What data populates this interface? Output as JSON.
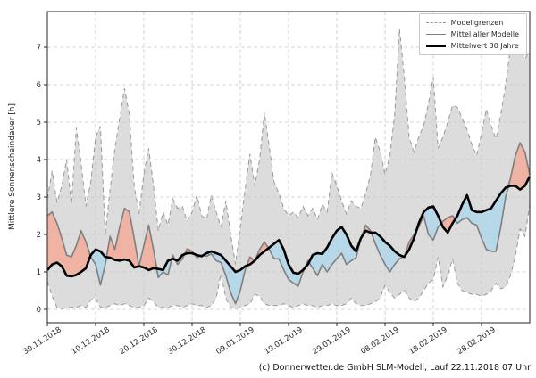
{
  "figure": {
    "y_axis_label": "Mittlere Sonnenscheindauer [h]",
    "footer": "(c) Donnerwetter.de GmbH SLM-Modell, Lauf 22.11.2018 07 Uhr",
    "legend": {
      "model_bounds": "Modellgrenzen",
      "model_mean": "Mittel aller Modelle",
      "climate_mean": "Mittelwert 30 Jahre"
    }
  },
  "chart_data": {
    "type": "line",
    "title": "",
    "xlabel": "",
    "ylabel": "Mittlere Sonnenscheindauer [h]",
    "ylim": [
      0,
      7
    ],
    "grid": true,
    "legend_position": "upper right",
    "x_start": "30.11.2018",
    "x_step": "1 Tag",
    "x_tick_days": [
      0,
      10,
      20,
      30,
      40,
      50,
      60,
      70,
      80,
      90
    ],
    "x_tick_labels": [
      "30.11.2018",
      "10.12.2018",
      "20.12.2018",
      "30.12.2018",
      "09.01.2019",
      "19.01.2019",
      "29.01.2019",
      "08.02.2019",
      "18.02.2019",
      "28.02.2019"
    ],
    "y_ticks": [
      0,
      1,
      2,
      3,
      4,
      5,
      6,
      7
    ],
    "colors": {
      "band": "#dcdcdc",
      "bound_line": "#999999",
      "model_mean": "#7f7f7f",
      "climate_mean": "#000000",
      "above_climate": "#f0b2a2",
      "below_climate": "#b7d8e9",
      "grid": "#c8c8c8",
      "axis": "#262626"
    },
    "series": [
      {
        "name": "Modellgrenzen (obere Grenze)",
        "role": "band_upper",
        "style": "dashed",
        "values": [
          2.95,
          3.7,
          2.85,
          3.3,
          4.0,
          2.8,
          4.85,
          3.9,
          2.75,
          3.4,
          4.6,
          4.89,
          2.0,
          3.2,
          4.3,
          5.1,
          5.9,
          5.2,
          3.3,
          2.55,
          3.6,
          4.3,
          3.3,
          2.1,
          2.6,
          2.25,
          2.95,
          2.7,
          2.75,
          2.35,
          2.6,
          3.05,
          2.5,
          2.4,
          3.05,
          2.6,
          2.2,
          2.9,
          2.0,
          1.2,
          2.2,
          3.2,
          4.15,
          3.3,
          4.0,
          5.25,
          4.35,
          3.4,
          3.1,
          2.7,
          2.5,
          2.6,
          2.45,
          2.75,
          2.5,
          2.7,
          2.4,
          2.8,
          2.6,
          3.65,
          3.3,
          2.9,
          2.55,
          2.9,
          2.75,
          2.7,
          3.1,
          3.6,
          4.6,
          4.2,
          3.6,
          4.1,
          5.2,
          7.5,
          6.2,
          4.6,
          4.2,
          4.6,
          4.9,
          5.5,
          6.2,
          4.3,
          4.6,
          5.0,
          5.45,
          5.4,
          5.1,
          4.8,
          4.4,
          4.1,
          4.7,
          5.35,
          4.9,
          4.55,
          5.2,
          6.0,
          7.0,
          7.0,
          6.95,
          6.7,
          6.9
        ]
      },
      {
        "name": "Modellgrenzen (untere Grenze)",
        "role": "band_lower",
        "style": "dashed",
        "values": [
          0.75,
          0.35,
          0.05,
          0.02,
          0.05,
          0.05,
          0.05,
          0.1,
          0.05,
          0.25,
          0.3,
          0.05,
          0.05,
          0.1,
          0.15,
          0.1,
          0.15,
          0.1,
          0.05,
          0.05,
          0.1,
          0.3,
          0.2,
          0.05,
          0.05,
          0.05,
          0.1,
          0.1,
          0.05,
          0.1,
          0.15,
          0.1,
          0.1,
          0.05,
          0.1,
          0.3,
          0.95,
          0.3,
          0.05,
          0.02,
          0.05,
          0.1,
          0.15,
          0.4,
          0.35,
          0.15,
          0.1,
          0.1,
          0.1,
          0.15,
          0.1,
          0.05,
          0.1,
          0.15,
          0.1,
          0.1,
          0.05,
          0.1,
          0.1,
          0.15,
          0.1,
          0.1,
          0.15,
          0.3,
          0.15,
          0.1,
          0.1,
          0.15,
          0.2,
          0.3,
          0.65,
          0.45,
          0.3,
          0.4,
          0.5,
          0.3,
          0.2,
          0.3,
          0.5,
          0.7,
          0.8,
          1.4,
          0.6,
          0.9,
          1.35,
          0.7,
          0.5,
          0.45,
          0.4,
          0.4,
          0.35,
          0.4,
          0.5,
          0.7,
          0.55,
          0.6,
          0.9,
          1.4,
          2.15,
          1.95,
          2.8
        ]
      },
      {
        "name": "Mittel aller Modelle",
        "role": "model_mean",
        "style": "solid",
        "values": [
          2.5,
          2.6,
          2.3,
          1.9,
          1.45,
          1.4,
          1.7,
          2.1,
          1.8,
          1.4,
          1.2,
          0.65,
          1.2,
          1.95,
          1.6,
          2.2,
          2.7,
          2.6,
          1.9,
          1.15,
          1.7,
          2.25,
          1.6,
          0.85,
          1.0,
          0.92,
          1.45,
          1.2,
          1.35,
          1.62,
          1.55,
          1.38,
          1.45,
          1.42,
          1.48,
          1.3,
          1.25,
          0.9,
          0.45,
          0.15,
          0.5,
          1.05,
          1.4,
          1.3,
          1.6,
          1.8,
          1.6,
          1.35,
          1.35,
          1.05,
          0.8,
          0.7,
          0.62,
          1.0,
          1.3,
          1.1,
          0.9,
          1.2,
          1.0,
          1.2,
          1.35,
          1.5,
          1.2,
          1.3,
          1.38,
          1.9,
          2.25,
          2.1,
          1.75,
          1.45,
          1.2,
          1.0,
          1.2,
          1.35,
          1.42,
          1.8,
          2.0,
          2.2,
          2.5,
          2.0,
          1.85,
          2.2,
          2.35,
          2.45,
          2.5,
          2.3,
          2.4,
          2.45,
          2.3,
          2.25,
          1.9,
          1.6,
          1.55,
          1.55,
          2.2,
          3.0,
          3.5,
          4.1,
          4.45,
          4.2,
          3.6
        ]
      },
      {
        "name": "Mittelwert 30 Jahre",
        "role": "climate_mean",
        "style": "solid_bold",
        "values": [
          1.05,
          1.2,
          1.25,
          1.15,
          0.9,
          0.88,
          0.92,
          1.0,
          1.1,
          1.45,
          1.6,
          1.55,
          1.4,
          1.38,
          1.32,
          1.3,
          1.33,
          1.3,
          1.12,
          1.15,
          1.12,
          1.05,
          1.1,
          1.08,
          1.05,
          1.3,
          1.35,
          1.3,
          1.45,
          1.5,
          1.5,
          1.45,
          1.42,
          1.5,
          1.55,
          1.5,
          1.45,
          1.3,
          1.15,
          1.0,
          1.05,
          1.15,
          1.2,
          1.3,
          1.45,
          1.55,
          1.65,
          1.75,
          1.85,
          1.6,
          1.2,
          0.98,
          0.95,
          1.05,
          1.2,
          1.45,
          1.5,
          1.48,
          1.65,
          1.9,
          2.1,
          2.2,
          2.0,
          1.7,
          1.55,
          1.9,
          2.1,
          2.05,
          2.05,
          1.95,
          1.8,
          1.7,
          1.55,
          1.45,
          1.4,
          1.6,
          1.9,
          2.3,
          2.6,
          2.72,
          2.75,
          2.5,
          2.2,
          2.05,
          2.3,
          2.5,
          2.8,
          3.05,
          2.65,
          2.6,
          2.6,
          2.65,
          2.7,
          2.9,
          3.1,
          3.25,
          3.3,
          3.3,
          3.2,
          3.3,
          3.55
        ]
      }
    ]
  }
}
